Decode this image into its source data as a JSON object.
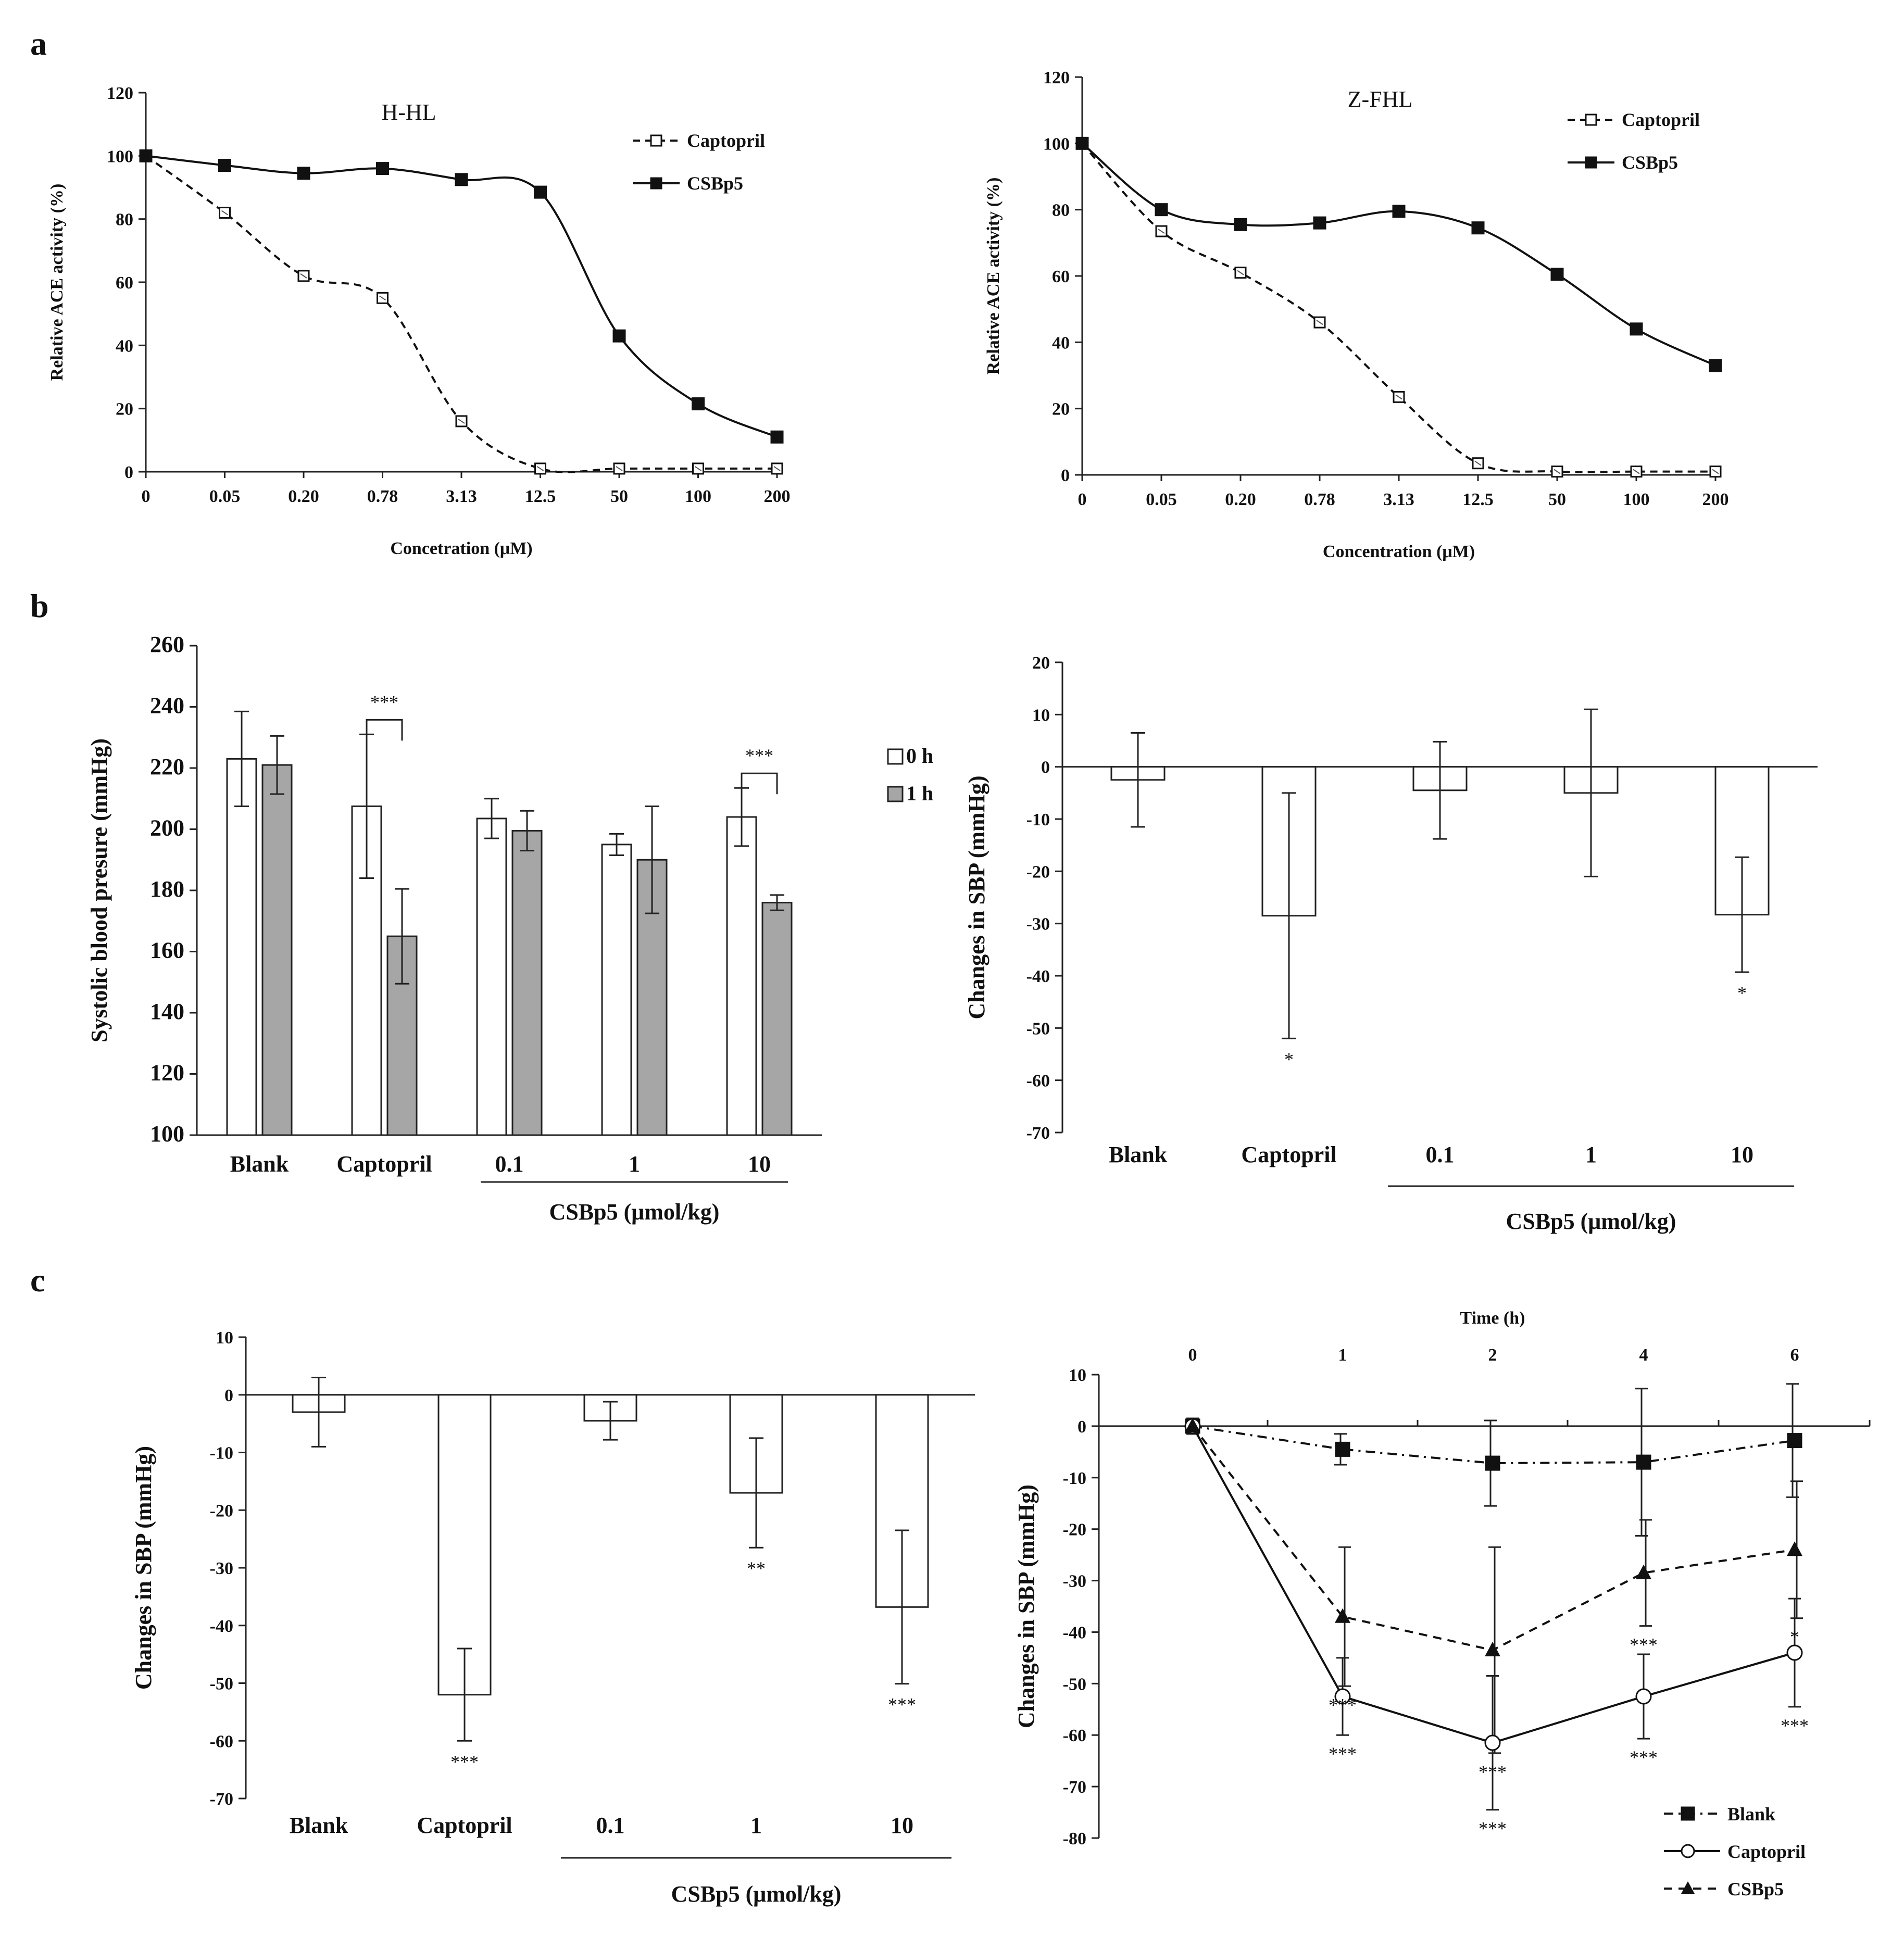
{
  "panel_labels": [
    "a",
    "b",
    "c"
  ],
  "chart_data": [
    {
      "type": "line",
      "panel": "a",
      "title": "H-HL",
      "xlabel": "Concetration (μM)",
      "ylabel": "Relative ACE activity (%)",
      "ylim": [
        0,
        120
      ],
      "yticks": [
        "0",
        "20",
        "40",
        "60",
        "80",
        "100",
        "120"
      ],
      "categories": [
        "0",
        "0.05",
        "0.20",
        "0.78",
        "3.13",
        "12.5",
        "50",
        "100",
        "200"
      ],
      "legend_position": "top-right",
      "series": [
        {
          "name": "Captopril",
          "marker": "open-square",
          "line": "dashed",
          "values": [
            100,
            82,
            62,
            55,
            16,
            1,
            1,
            1,
            1
          ]
        },
        {
          "name": "CSBp5",
          "marker": "filled-square",
          "line": "solid",
          "values": [
            100,
            97,
            94.5,
            96,
            92.5,
            88.5,
            43,
            21.5,
            11
          ]
        }
      ]
    },
    {
      "type": "line",
      "panel": "a",
      "title": "Z-FHL",
      "xlabel": "Concentration (μM)",
      "ylabel": "Relative ACE activity (%)",
      "ylim": [
        0,
        120
      ],
      "yticks": [
        "0",
        "20",
        "40",
        "60",
        "80",
        "100",
        "120"
      ],
      "categories": [
        "0",
        "0.05",
        "0.20",
        "0.78",
        "3.13",
        "12.5",
        "50",
        "100",
        "200"
      ],
      "legend_position": "top-right",
      "series": [
        {
          "name": "Captopril",
          "marker": "open-square",
          "line": "dashed",
          "values": [
            100,
            73.5,
            61,
            46,
            23.5,
            3.5,
            1,
            1,
            1
          ]
        },
        {
          "name": "CSBp5",
          "marker": "filled-square",
          "line": "solid",
          "values": [
            100,
            80,
            75.5,
            76,
            79.5,
            74.5,
            60.5,
            44,
            33
          ]
        }
      ]
    },
    {
      "type": "bar",
      "panel": "b",
      "ylabel": "Systolic blood presure (mmHg)",
      "ylim": [
        100,
        260
      ],
      "yticks": [
        "100",
        "120",
        "140",
        "160",
        "180",
        "200",
        "220",
        "240",
        "260"
      ],
      "categories": [
        "Blank",
        "Captopril",
        "0.1",
        "1",
        "10"
      ],
      "group_label": "CSBp5 (μmol/kg)",
      "legend_position": "right",
      "series": [
        {
          "name": "0 h",
          "color": "#ffffff",
          "values": [
            223,
            207.5,
            203.5,
            195,
            204
          ],
          "errors": [
            15.5,
            23.5,
            6.5,
            3.5,
            9.5
          ]
        },
        {
          "name": "1 h",
          "color": "#a6a6a6",
          "values": [
            221,
            165,
            199.5,
            190,
            176
          ],
          "errors": [
            9.5,
            15.5,
            6.5,
            17.5,
            2.5
          ]
        }
      ],
      "annotations": [
        {
          "category": "Captopril",
          "text": "***"
        },
        {
          "category": "10",
          "text": "***"
        }
      ]
    },
    {
      "type": "bar",
      "panel": "b",
      "ylabel": "Changes in SBP (mmHg)",
      "ylim": [
        -70,
        20
      ],
      "yticks": [
        "-70",
        "-60",
        "-50",
        "-40",
        "-30",
        "-20",
        "-10",
        "0",
        "10",
        "20"
      ],
      "categories": [
        "Blank",
        "Captopril",
        "0.1",
        "1",
        "10"
      ],
      "group_label": "CSBp5 (μmol/kg)",
      "values": [
        -2.5,
        -28.5,
        -4.5,
        -5,
        -28.3
      ],
      "errors": [
        9,
        23.5,
        9.3,
        16,
        11
      ],
      "annotations": [
        {
          "category": "Captopril",
          "text": "*"
        },
        {
          "category": "10",
          "text": "*"
        }
      ]
    },
    {
      "type": "bar",
      "panel": "c",
      "ylabel": "Changes in SBP (mmHg)",
      "ylim": [
        -70,
        10
      ],
      "yticks": [
        "-70",
        "-60",
        "-50",
        "-40",
        "-30",
        "-20",
        "-10",
        "0",
        "10"
      ],
      "categories": [
        "Blank",
        "Captopril",
        "0.1",
        "1",
        "10"
      ],
      "group_label": "CSBp5 (μmol/kg)",
      "values": [
        -3,
        -52,
        -4.5,
        -17,
        -36.8
      ],
      "errors": [
        6,
        8,
        3.3,
        9.5,
        13.3
      ],
      "annotations": [
        {
          "category": "Captopril",
          "text": "***"
        },
        {
          "category": "1",
          "text": "**"
        },
        {
          "category": "10",
          "text": "***"
        }
      ]
    },
    {
      "type": "line",
      "panel": "c",
      "xlabel": "Time (h)",
      "ylabel": "Changes in SBP (mmHg)",
      "ylim": [
        -80,
        10
      ],
      "yticks": [
        "-80",
        "-70",
        "-60",
        "-50",
        "-40",
        "-30",
        "-20",
        "-10",
        "0",
        "10"
      ],
      "categories": [
        "0",
        "1",
        "2",
        "4",
        "6"
      ],
      "legend_position": "bottom-right",
      "series": [
        {
          "name": "Blank",
          "marker": "filled-square",
          "line": "dash-dot",
          "values": [
            0,
            -4.5,
            -7.2,
            -7,
            -2.8
          ],
          "errors": [
            1.5,
            3,
            8.3,
            14.3,
            11
          ]
        },
        {
          "name": "Captopril",
          "marker": "open-circle",
          "line": "solid",
          "values": [
            0,
            -52.5,
            -61.5,
            -52.5,
            -44
          ],
          "errors": [
            1.5,
            7.5,
            13,
            8.2,
            10.5
          ]
        },
        {
          "name": "CSBp5",
          "marker": "filled-triangle",
          "line": "dashed",
          "values": [
            0,
            -37,
            -43.5,
            -28.5,
            -24
          ],
          "errors": [
            1.5,
            13.5,
            20,
            10.3,
            13.3
          ]
        }
      ],
      "annotations": [
        {
          "category": "1",
          "series": "CSBp5",
          "text": "***"
        },
        {
          "category": "2",
          "series": "CSBp5",
          "text": "***"
        },
        {
          "category": "4",
          "series": "CSBp5",
          "text": "***"
        },
        {
          "category": "6",
          "series": "CSBp5",
          "text": "*"
        },
        {
          "category": "1",
          "series": "Captopril",
          "text": "***"
        },
        {
          "category": "2",
          "series": "Captopril",
          "text": "***"
        },
        {
          "category": "4",
          "series": "Captopril",
          "text": "***"
        },
        {
          "category": "6",
          "series": "Captopril",
          "text": "***"
        }
      ]
    }
  ]
}
